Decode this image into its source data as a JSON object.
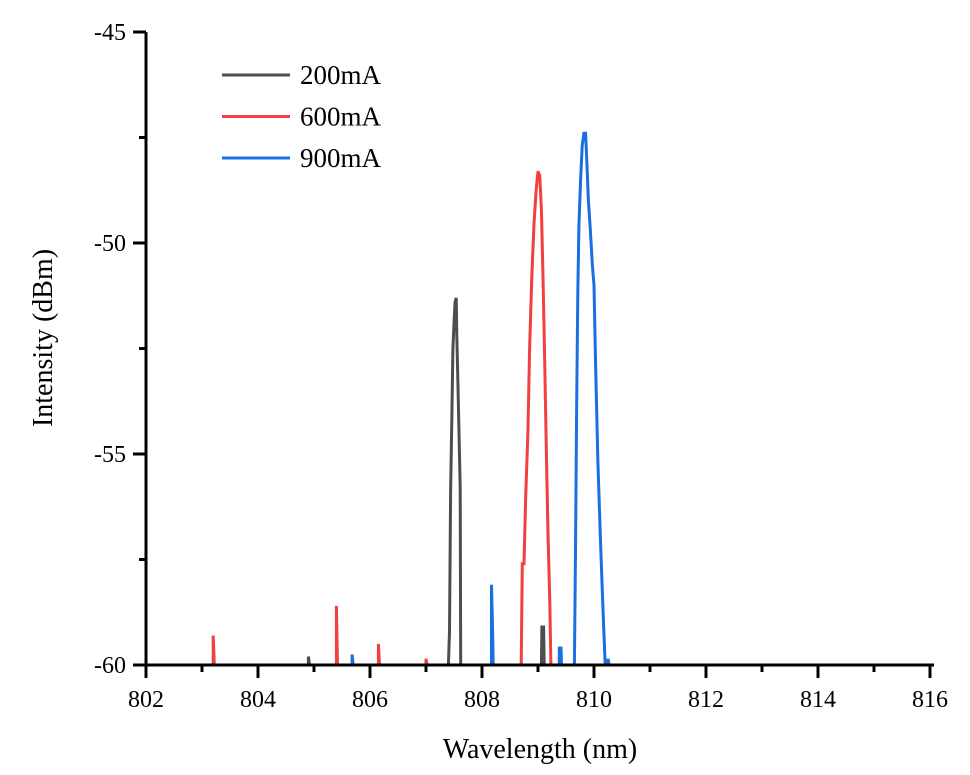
{
  "chart_data": {
    "type": "line",
    "title": "",
    "xlabel": "Wavelength (nm)",
    "ylabel": "Intensity (dBm)",
    "xlim": [
      802,
      816
    ],
    "ylim": [
      -60,
      -45
    ],
    "xticks": [
      802,
      804,
      806,
      808,
      810,
      812,
      814,
      816
    ],
    "yticks": [
      -45,
      -50,
      -55,
      -60
    ],
    "grid": false,
    "legend_position": "top-left",
    "series": [
      {
        "name": "200mA",
        "color": "#4d4d4d",
        "points": [
          [
            804.9,
            -60
          ],
          [
            804.9,
            -59.8
          ],
          [
            804.92,
            -60
          ],
          [
            807.4,
            -60
          ],
          [
            807.42,
            -59.2
          ],
          [
            807.44,
            -55.9
          ],
          [
            807.46,
            -54.2
          ],
          [
            807.48,
            -52.5
          ],
          [
            807.5,
            -51.9
          ],
          [
            807.52,
            -51.4
          ],
          [
            807.54,
            -51.3
          ],
          [
            807.55,
            -52.2
          ],
          [
            807.57,
            -53.3
          ],
          [
            807.59,
            -54.5
          ],
          [
            807.61,
            -55.8
          ],
          [
            807.62,
            -60
          ],
          [
            809.06,
            -60
          ],
          [
            809.07,
            -59.1
          ],
          [
            809.1,
            -59.1
          ],
          [
            809.11,
            -60
          ]
        ]
      },
      {
        "name": "600mA",
        "color": "#f23f3f",
        "points": [
          [
            803.2,
            -60
          ],
          [
            803.2,
            -59.3
          ],
          [
            803.22,
            -60
          ],
          [
            805.4,
            -60
          ],
          [
            805.4,
            -58.6
          ],
          [
            805.42,
            -60
          ],
          [
            806.15,
            -60
          ],
          [
            806.15,
            -59.5
          ],
          [
            806.17,
            -60
          ],
          [
            807.0,
            -60
          ],
          [
            807.0,
            -59.85
          ],
          [
            807.02,
            -60
          ],
          [
            808.7,
            -60
          ],
          [
            808.72,
            -57.6
          ],
          [
            808.75,
            -57.6
          ],
          [
            808.78,
            -56.0
          ],
          [
            808.82,
            -54.5
          ],
          [
            808.85,
            -52.5
          ],
          [
            808.89,
            -50.8
          ],
          [
            808.93,
            -49.5
          ],
          [
            808.97,
            -48.7
          ],
          [
            809.0,
            -48.3
          ],
          [
            809.03,
            -48.4
          ],
          [
            809.06,
            -49.2
          ],
          [
            809.09,
            -50.8
          ],
          [
            809.12,
            -52.8
          ],
          [
            809.15,
            -55.0
          ],
          [
            809.18,
            -57.0
          ],
          [
            809.21,
            -58.5
          ],
          [
            809.23,
            -60
          ]
        ]
      },
      {
        "name": "900mA",
        "color": "#1b6fe0",
        "points": [
          [
            805.68,
            -60
          ],
          [
            805.68,
            -59.75
          ],
          [
            805.7,
            -60
          ],
          [
            808.17,
            -60
          ],
          [
            808.17,
            -58.1
          ],
          [
            808.19,
            -59.2
          ],
          [
            808.2,
            -60
          ],
          [
            809.38,
            -60
          ],
          [
            809.38,
            -59.6
          ],
          [
            809.41,
            -59.6
          ],
          [
            809.42,
            -60
          ],
          [
            809.65,
            -60
          ],
          [
            809.67,
            -57.3
          ],
          [
            809.69,
            -54.0
          ],
          [
            809.71,
            -51.2
          ],
          [
            809.73,
            -49.6
          ],
          [
            809.76,
            -48.5
          ],
          [
            809.79,
            -47.7
          ],
          [
            809.82,
            -47.4
          ],
          [
            809.85,
            -47.4
          ],
          [
            809.87,
            -48.0
          ],
          [
            809.9,
            -49.0
          ],
          [
            809.93,
            -49.6
          ],
          [
            809.97,
            -50.5
          ],
          [
            810.0,
            -51.0
          ],
          [
            810.03,
            -53.0
          ],
          [
            810.07,
            -55.2
          ],
          [
            810.12,
            -57.2
          ],
          [
            810.17,
            -59.0
          ],
          [
            810.2,
            -60
          ],
          [
            810.25,
            -60
          ],
          [
            810.25,
            -59.85
          ],
          [
            810.27,
            -60
          ]
        ]
      }
    ]
  }
}
